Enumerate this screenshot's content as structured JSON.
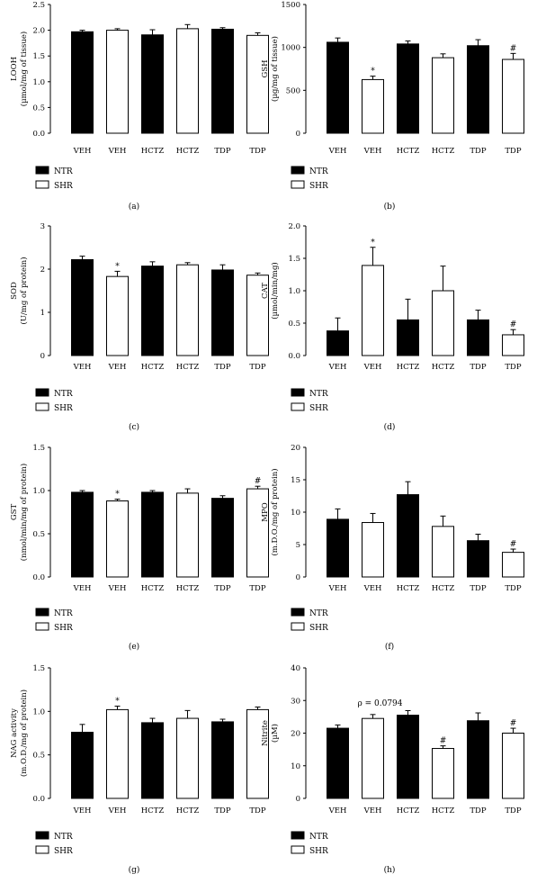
{
  "legend": {
    "ntr_label": "NTR",
    "shr_label": "SHR",
    "ntr_color": "#000000",
    "shr_color": "#ffffff"
  },
  "chart_data": [
    {
      "type": "bar",
      "panel_label": "(a)",
      "ylabel": "LOOH",
      "ylabel2": "(µmol/mg of tissue)",
      "categories": [
        "VEH",
        "VEH",
        "HCTZ",
        "HCTZ",
        "TDP",
        "TDP"
      ],
      "groups": [
        "NTR",
        "SHR",
        "NTR",
        "SHR",
        "NTR",
        "SHR"
      ],
      "values": [
        1.97,
        2.0,
        1.91,
        2.03,
        2.02,
        1.9
      ],
      "errors": [
        0.03,
        0.03,
        0.1,
        0.08,
        0.03,
        0.05
      ],
      "annotations": [
        "",
        "",
        "",
        "",
        "",
        ""
      ],
      "ylim": [
        0,
        2.5
      ],
      "yticks": [
        0.0,
        0.5,
        1.0,
        1.5,
        2.0,
        2.5
      ],
      "yticklabels": [
        "0.0",
        "0.5",
        "1.0",
        "1.5",
        "2.0",
        "2.5"
      ]
    },
    {
      "type": "bar",
      "panel_label": "(b)",
      "ylabel": "GSH",
      "ylabel2": "(µg/mg of tissue)",
      "categories": [
        "VEH",
        "VEH",
        "HCTZ",
        "HCTZ",
        "TDP",
        "TDP"
      ],
      "groups": [
        "NTR",
        "SHR",
        "NTR",
        "SHR",
        "NTR",
        "SHR"
      ],
      "values": [
        1060,
        625,
        1040,
        880,
        1020,
        860
      ],
      "errors": [
        50,
        40,
        35,
        45,
        70,
        70
      ],
      "annotations": [
        "",
        "*",
        "",
        "",
        "",
        "#"
      ],
      "ylim": [
        0,
        1500
      ],
      "yticks": [
        0,
        500,
        1000,
        1500
      ],
      "yticklabels": [
        "0",
        "500",
        "1000",
        "1500"
      ]
    },
    {
      "type": "bar",
      "panel_label": "(c)",
      "ylabel": "SOD",
      "ylabel2": "(U/mg of protein)",
      "categories": [
        "VEH",
        "VEH",
        "HCTZ",
        "HCTZ",
        "TDP",
        "TDP"
      ],
      "groups": [
        "NTR",
        "SHR",
        "NTR",
        "SHR",
        "NTR",
        "SHR"
      ],
      "values": [
        2.22,
        1.83,
        2.07,
        2.1,
        1.98,
        1.86
      ],
      "errors": [
        0.08,
        0.12,
        0.1,
        0.05,
        0.12,
        0.05
      ],
      "annotations": [
        "",
        "*",
        "",
        "",
        "",
        ""
      ],
      "ylim": [
        0,
        3
      ],
      "yticks": [
        0,
        1,
        2,
        3
      ],
      "yticklabels": [
        "0",
        "1",
        "2",
        "3"
      ]
    },
    {
      "type": "bar",
      "panel_label": "(d)",
      "ylabel": "CAT",
      "ylabel2": "(µmol/min/mg)",
      "categories": [
        "VEH",
        "VEH",
        "HCTZ",
        "HCTZ",
        "TDP",
        "TDP"
      ],
      "groups": [
        "NTR",
        "SHR",
        "NTR",
        "SHR",
        "NTR",
        "SHR"
      ],
      "values": [
        0.38,
        1.39,
        0.55,
        1.0,
        0.55,
        0.32
      ],
      "errors": [
        0.2,
        0.28,
        0.32,
        0.38,
        0.15,
        0.08
      ],
      "annotations": [
        "",
        "*",
        "",
        "",
        "",
        "#"
      ],
      "ylim": [
        0,
        2.0
      ],
      "yticks": [
        0.0,
        0.5,
        1.0,
        1.5,
        2.0
      ],
      "yticklabels": [
        "0.0",
        "0.5",
        "1.0",
        "1.5",
        "2.0"
      ]
    },
    {
      "type": "bar",
      "panel_label": "(e)",
      "ylabel": "GST",
      "ylabel2": "(nmol/min/mg of protein)",
      "categories": [
        "VEH",
        "VEH",
        "HCTZ",
        "HCTZ",
        "TDP",
        "TDP"
      ],
      "groups": [
        "NTR",
        "SHR",
        "NTR",
        "SHR",
        "NTR",
        "SHR"
      ],
      "values": [
        0.98,
        0.88,
        0.98,
        0.97,
        0.91,
        1.02
      ],
      "errors": [
        0.02,
        0.02,
        0.02,
        0.05,
        0.03,
        0.03
      ],
      "annotations": [
        "",
        "*",
        "",
        "",
        "",
        "#"
      ],
      "ylim": [
        0,
        1.5
      ],
      "yticks": [
        0.0,
        0.5,
        1.0,
        1.5
      ],
      "yticklabels": [
        "0.0",
        "0.5",
        "1.0",
        "1.5"
      ]
    },
    {
      "type": "bar",
      "panel_label": "(f)",
      "ylabel": "MPO",
      "ylabel2": "(m.D.O./mg of protein)",
      "categories": [
        "VEH",
        "VEH",
        "HCTZ",
        "HCTZ",
        "TDP",
        "TDP"
      ],
      "groups": [
        "NTR",
        "SHR",
        "NTR",
        "SHR",
        "NTR",
        "SHR"
      ],
      "values": [
        8.9,
        8.4,
        12.7,
        7.8,
        5.6,
        3.8
      ],
      "errors": [
        1.6,
        1.4,
        2.0,
        1.6,
        1.0,
        0.5
      ],
      "annotations": [
        "",
        "",
        "",
        "",
        "",
        "#"
      ],
      "ylim": [
        0,
        20
      ],
      "yticks": [
        0,
        5,
        10,
        15,
        20
      ],
      "yticklabels": [
        "0",
        "5",
        "10",
        "15",
        "20"
      ]
    },
    {
      "type": "bar",
      "panel_label": "(g)",
      "ylabel": "NAG activity",
      "ylabel2": "(m.O.D./mg of protein)",
      "categories": [
        "VEH",
        "VEH",
        "HCTZ",
        "HCTZ",
        "TDP",
        "TDP"
      ],
      "groups": [
        "NTR",
        "SHR",
        "NTR",
        "SHR",
        "NTR",
        "SHR"
      ],
      "values": [
        0.76,
        1.02,
        0.87,
        0.92,
        0.88,
        1.02
      ],
      "errors": [
        0.09,
        0.04,
        0.05,
        0.09,
        0.03,
        0.03
      ],
      "annotations": [
        "",
        "*",
        "",
        "",
        "",
        ""
      ],
      "ylim": [
        0,
        1.5
      ],
      "yticks": [
        0.0,
        0.5,
        1.0,
        1.5
      ],
      "yticklabels": [
        "0.0",
        "0.5",
        "1.0",
        "1.5"
      ]
    },
    {
      "type": "bar",
      "panel_label": "(h)",
      "ylabel": "Nitrite",
      "ylabel2": "(µM)",
      "categories": [
        "VEH",
        "VEH",
        "HCTZ",
        "HCTZ",
        "TDP",
        "TDP"
      ],
      "groups": [
        "NTR",
        "SHR",
        "NTR",
        "SHR",
        "NTR",
        "SHR"
      ],
      "values": [
        21.5,
        24.5,
        25.5,
        15.3,
        23.8,
        20.0
      ],
      "errors": [
        1.0,
        1.2,
        1.4,
        0.8,
        2.4,
        1.5
      ],
      "annotations": [
        "",
        "",
        "",
        "#",
        "",
        "#"
      ],
      "p_annotation": "ρ = 0.0794",
      "ylim": [
        0,
        40
      ],
      "yticks": [
        0,
        10,
        20,
        30,
        40
      ],
      "yticklabels": [
        "0",
        "10",
        "20",
        "30",
        "40"
      ]
    }
  ]
}
